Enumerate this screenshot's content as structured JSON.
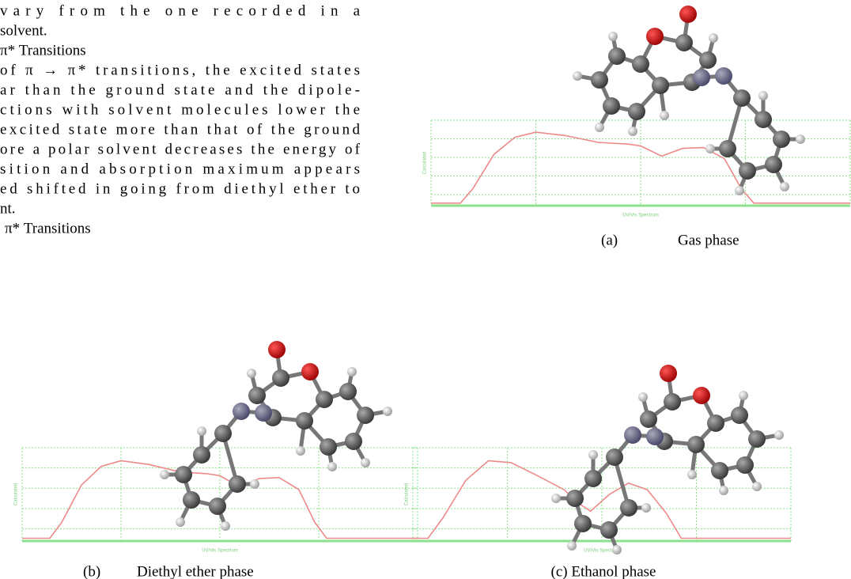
{
  "body_text": {
    "lines": [
      "vary from the one recorded in a",
      "solvent.",
      "π* Transitions",
      "of π → π* transitions, the excited states",
      "ar than the ground state and the dipole-",
      "ctions with solvent molecules lower the",
      "excited state more than that of the ground",
      "ore a polar solvent decreases the energy of",
      "sition and absorption maximum appears",
      "ed shifted in going from diethyl ether to",
      "nt.",
      "π* Transitions"
    ]
  },
  "figures": [
    {
      "label": "(a)",
      "caption": "Gas phase",
      "x_axis_label": "UV/Vis Spectrum",
      "y_axis_label": "Calculated"
    },
    {
      "label": "(b)",
      "caption": "Diethyl ether phase",
      "x_axis_label": "UV/Vis Spectrum",
      "y_axis_label": "Calculated"
    },
    {
      "caption": "(c) Ethanol phase",
      "x_axis_label": "UV/Vis Spectrum",
      "y_axis_label": "Calculated"
    }
  ]
}
